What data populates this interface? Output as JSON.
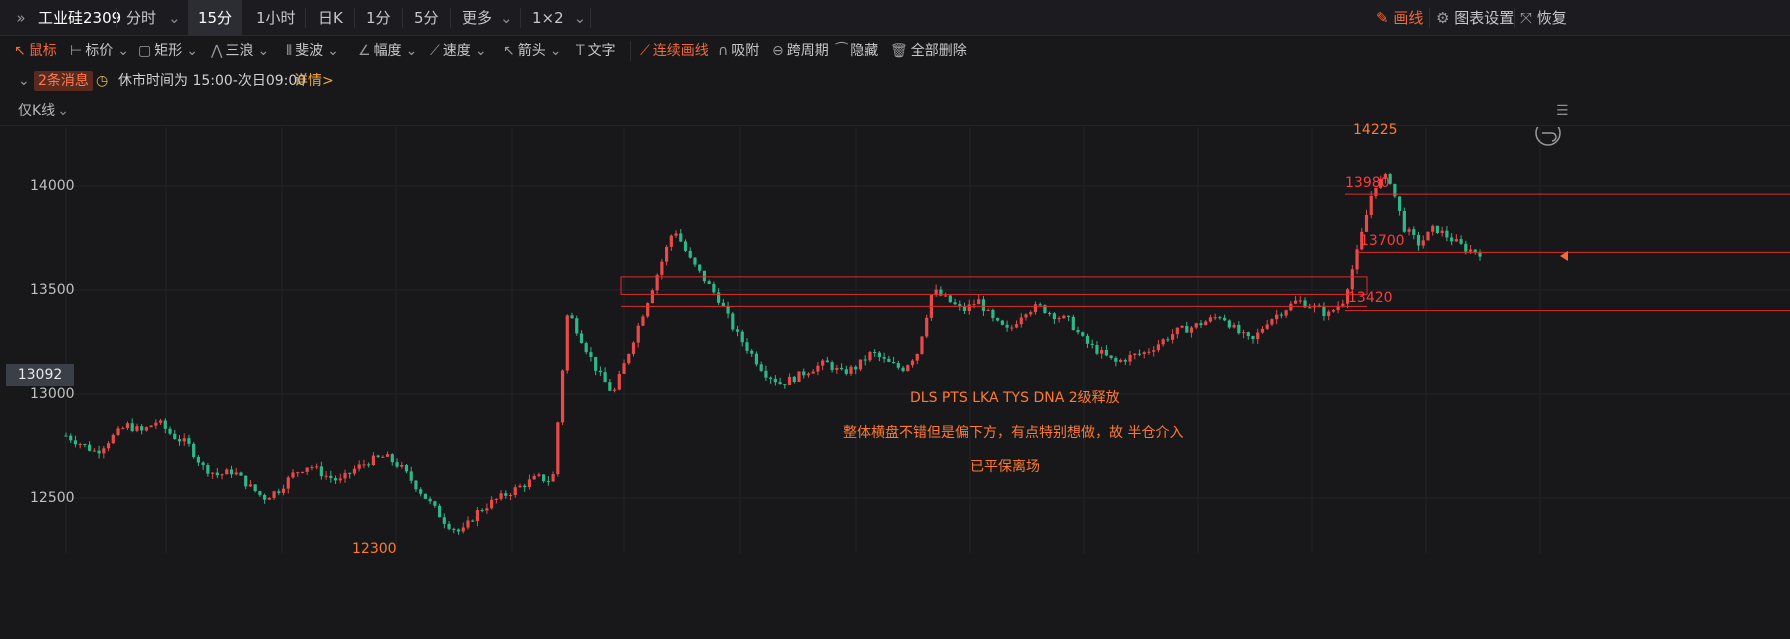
{
  "topbar": {
    "expand_icon": "double-chevron-right-icon",
    "symbol": "工业硅2309",
    "tabs": [
      "分时",
      "15分",
      "1小时",
      "日K",
      "1分",
      "5分",
      "更多",
      "1×2"
    ],
    "active_tab": "15分",
    "draw_label": "画线",
    "chart_settings_label": "图表设置",
    "restore_label": "恢复"
  },
  "toolbar": {
    "items": [
      "鼠标",
      "标价",
      "矩形",
      "三浪",
      "斐波",
      "幅度",
      "速度",
      "箭头",
      "文字",
      "连续画线",
      "吸附",
      "跨周期",
      "隐藏",
      "全部删除"
    ]
  },
  "msgbar": {
    "count_label": "2条消息",
    "notice": "休市时间为 15:00-次日09:00",
    "detail_link": "详情>"
  },
  "ctrlbar": {
    "mode_label": "仅K线"
  },
  "price_tag": "13092",
  "annotations": {
    "high_label": "14225",
    "low_label": "12300",
    "level_13980": "13980",
    "level_13700": "13700",
    "level_13420": "13420",
    "note1": "DLS PTS  LKA TYS DNA  2级释放",
    "note2": "整体横盘不错但是偏下方，有点特别想做，故 半仓介入",
    "note3": "已平保离场"
  },
  "colors": {
    "up": "#e84a4a",
    "down": "#2fb887",
    "accent": "#f06a3b",
    "drawing": "#e02b2b",
    "background": "#18181b"
  },
  "chart_data": {
    "type": "candlestick",
    "symbol": "工业硅2309",
    "interval": "15分",
    "y_ticks": [
      12500,
      13000,
      13500,
      14000
    ],
    "ylim": [
      12250,
      14450
    ],
    "grid": true,
    "high": 14225,
    "low": 12300,
    "current_price": 13092,
    "horizontal_levels": [
      13980,
      13700,
      13420
    ],
    "rectangle_zone": [
      13450,
      13515
    ],
    "approx_close_path": [
      12800,
      12760,
      12720,
      12790,
      12850,
      12820,
      12870,
      12800,
      12760,
      12650,
      12610,
      12630,
      12560,
      12500,
      12540,
      12620,
      12660,
      12610,
      12580,
      12640,
      12680,
      12700,
      12650,
      12560,
      12470,
      12380,
      12330,
      12430,
      12480,
      12520,
      12560,
      12600,
      12580,
      13400,
      13250,
      13100,
      13000,
      13200,
      13400,
      13600,
      13800,
      13650,
      13550,
      13450,
      13300,
      13200,
      13100,
      13050,
      13080,
      13120,
      13150,
      13100,
      13130,
      13200,
      13150,
      13120,
      13200,
      13500,
      13450,
      13400,
      13450,
      13350,
      13300,
      13400,
      13420,
      13380,
      13350,
      13250,
      13200,
      13150,
      13180,
      13200,
      13250,
      13300,
      13320,
      13350,
      13380,
      13300,
      13250,
      13350,
      13400,
      13450,
      13420,
      13380,
      13450,
      13700,
      14000,
      14050,
      13800,
      13720,
      13800,
      13750,
      13700,
      13680
    ]
  }
}
